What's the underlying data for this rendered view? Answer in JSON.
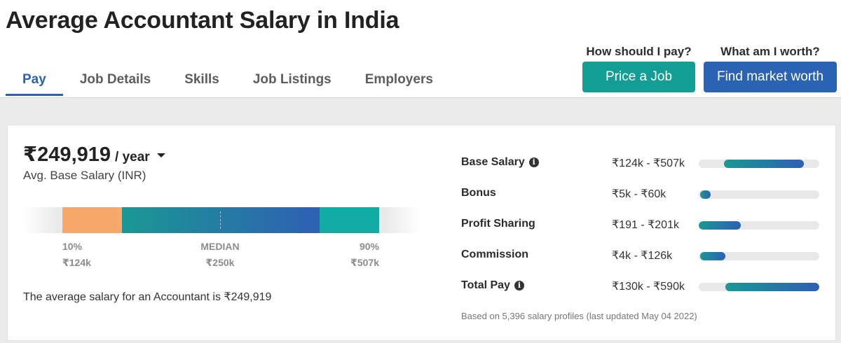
{
  "page": {
    "title": "Average Accountant Salary in India"
  },
  "tabs": [
    {
      "label": "Pay",
      "active": true
    },
    {
      "label": "Job Details",
      "active": false
    },
    {
      "label": "Skills",
      "active": false
    },
    {
      "label": "Job Listings",
      "active": false
    },
    {
      "label": "Employers",
      "active": false
    }
  ],
  "cta": {
    "price_question": "How should I pay?",
    "price_button": "Price a Job",
    "worth_question": "What am I worth?",
    "worth_button": "Find market worth"
  },
  "salary": {
    "amount": "₹249,919",
    "period": "/ year",
    "caption": "Avg. Base Salary (INR)",
    "summary": "The average salary for an Accountant is ₹249,919"
  },
  "range": {
    "p10_label": "10%",
    "p10_value": "₹124k",
    "median_label": "MEDIAN",
    "median_value": "₹250k",
    "p90_label": "90%",
    "p90_value": "₹507k"
  },
  "breakdown": [
    {
      "label": "Base Salary",
      "range": "₹124k - ₹507k",
      "info": true,
      "fill_start": 0.21,
      "fill_end": 0.87
    },
    {
      "label": "Bonus",
      "range": "₹5k - ₹60k",
      "info": false,
      "fill_start": 0.01,
      "fill_end": 0.1
    },
    {
      "label": "Profit Sharing",
      "range": "₹191 - ₹201k",
      "info": false,
      "fill_start": 0.0,
      "fill_end": 0.35
    },
    {
      "label": "Commission",
      "range": "₹4k - ₹126k",
      "info": false,
      "fill_start": 0.01,
      "fill_end": 0.22
    },
    {
      "label": "Total Pay",
      "range": "₹130k - ₹590k",
      "info": true,
      "fill_start": 0.22,
      "fill_end": 1.0
    }
  ],
  "footnote": "Based on 5,396 salary profiles (last updated May 04 2022)",
  "colors": {
    "brand_blue": "#2a63b1",
    "teal": "#129e94",
    "p10_segment": "#f9a86c",
    "p90_segment": "#13aba3"
  }
}
